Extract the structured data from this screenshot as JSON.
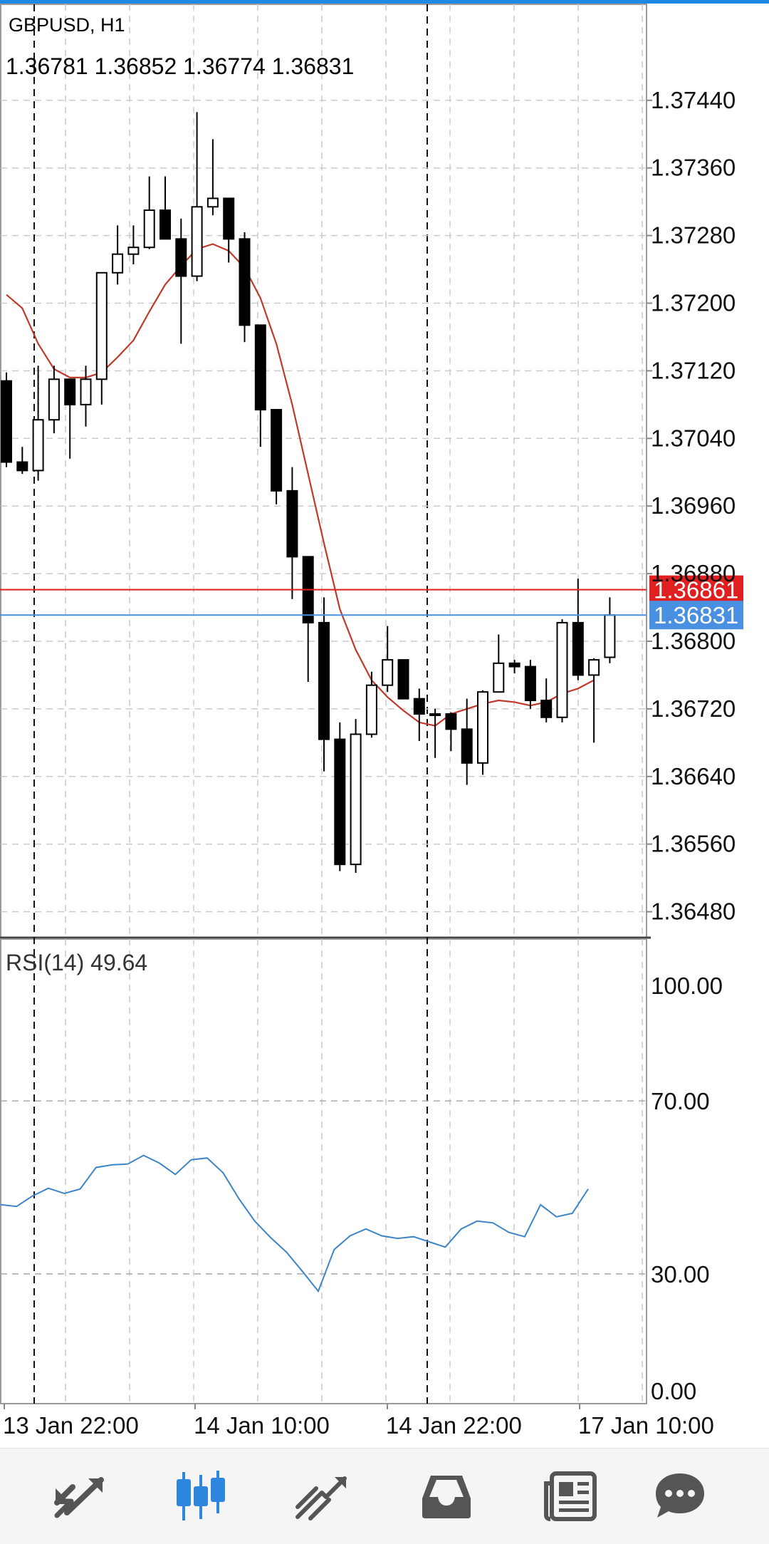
{
  "header": {
    "symbol_label": "GBPUSD, H1",
    "ohlc_label": "1.36781 1.36852 1.36774 1.36831"
  },
  "price_tags": {
    "bid": "1.36831",
    "ask": "1.36861",
    "bid_color": "#4a90e2",
    "ask_color": "#e02020"
  },
  "rsi_panel": {
    "label": "RSI(14) 49.64",
    "levels": [
      "100.00",
      "70.00",
      "30.00",
      "0.00"
    ]
  },
  "colors": {
    "ma_line": "#c0392b",
    "rsi_line": "#3d85c6",
    "grid": "#cccccc",
    "candle": "#000000",
    "nav_icon_active": "#2e86de",
    "nav_icon": "#555555"
  },
  "nav": {
    "items": [
      {
        "icon": "quotes-arrows-icon",
        "active": false
      },
      {
        "icon": "chart-candles-icon",
        "active": true
      },
      {
        "icon": "trade-lines-icon",
        "active": false
      },
      {
        "icon": "inbox-tray-icon",
        "active": false
      },
      {
        "icon": "news-icon",
        "active": false
      },
      {
        "icon": "chat-bubble-icon",
        "active": false
      }
    ]
  },
  "chart_data": [
    {
      "type": "candlestick",
      "title": "GBPUSD, H1",
      "ylim": [
        1.364,
        1.375
      ],
      "y_ticks": [
        "1.37440",
        "1.37360",
        "1.37280",
        "1.37200",
        "1.37120",
        "1.37040",
        "1.36960",
        "1.36880",
        "1.36800",
        "1.36720",
        "1.36640",
        "1.36560",
        "1.36480"
      ],
      "x_ticks": [
        "13 Jan 22:00",
        "14 Jan 10:00",
        "14 Jan 22:00",
        "17 Jan 10:00"
      ],
      "grid": true,
      "series": [
        {
          "candles": [
            [
              1.37108,
              1.37118,
              1.37006,
              1.37012
            ],
            [
              1.37012,
              1.3703,
              1.36998,
              1.37002
            ],
            [
              1.37002,
              1.37126,
              1.3699,
              1.37062
            ],
            [
              1.37062,
              1.37126,
              1.37046,
              1.3711
            ],
            [
              1.3711,
              1.3711,
              1.37016,
              1.3708
            ],
            [
              1.3708,
              1.37126,
              1.37054,
              1.3711
            ],
            [
              1.3711,
              1.37236,
              1.3708,
              1.37236
            ],
            [
              1.37236,
              1.37292,
              1.37222,
              1.37258
            ],
            [
              1.37258,
              1.37292,
              1.37246,
              1.37266
            ],
            [
              1.37266,
              1.3735,
              1.37264,
              1.3731
            ],
            [
              1.3731,
              1.3735,
              1.37276,
              1.37276
            ],
            [
              1.37276,
              1.373,
              1.37152,
              1.37232
            ],
            [
              1.37232,
              1.37426,
              1.37226,
              1.37314
            ],
            [
              1.37314,
              1.37394,
              1.37304,
              1.37324
            ],
            [
              1.37324,
              1.37324,
              1.37248,
              1.37276
            ],
            [
              1.37276,
              1.37284,
              1.37154,
              1.37174
            ],
            [
              1.37174,
              1.37174,
              1.3703,
              1.37074
            ],
            [
              1.37074,
              1.37074,
              1.36962,
              1.36978
            ],
            [
              1.36978,
              1.37006,
              1.3685,
              1.369
            ],
            [
              1.369,
              1.369,
              1.36752,
              1.36822
            ],
            [
              1.36822,
              1.36852,
              1.36646,
              1.36684
            ],
            [
              1.36684,
              1.36704,
              1.36528,
              1.36536
            ],
            [
              1.36536,
              1.36708,
              1.36526,
              1.3669
            ],
            [
              1.3669,
              1.36764,
              1.36686,
              1.36748
            ],
            [
              1.36748,
              1.36818,
              1.3674,
              1.36778
            ],
            [
              1.36778,
              1.36778,
              1.36732,
              1.36732
            ],
            [
              1.36732,
              1.36744,
              1.36682,
              1.36714
            ],
            [
              1.36714,
              1.3672,
              1.36662,
              1.36714
            ],
            [
              1.36714,
              1.36716,
              1.3667,
              1.36696
            ],
            [
              1.36696,
              1.36732,
              1.3663,
              1.36656
            ],
            [
              1.36656,
              1.36742,
              1.36642,
              1.3674
            ],
            [
              1.3674,
              1.36808,
              1.3674,
              1.36774
            ],
            [
              1.36774,
              1.36778,
              1.36762,
              1.3677
            ],
            [
              1.3677,
              1.36778,
              1.3672,
              1.3673
            ],
            [
              1.3673,
              1.36756,
              1.36704,
              1.3671
            ],
            [
              1.3671,
              1.36826,
              1.36704,
              1.36822
            ],
            [
              1.36822,
              1.36874,
              1.36754,
              1.3676
            ],
            [
              1.3676,
              1.3678,
              1.3668,
              1.36778
            ],
            [
              1.36781,
              1.36852,
              1.36774,
              1.36831
            ]
          ],
          "ma": [
            1.3721,
            1.37194,
            1.37152,
            1.37122,
            1.37112,
            1.37112,
            1.37118,
            1.37136,
            1.37156,
            1.3719,
            1.37222,
            1.37244,
            1.37264,
            1.3727,
            1.37262,
            1.37242,
            1.37206,
            1.37152,
            1.3708,
            1.36998,
            1.36916,
            1.36838,
            1.3679,
            1.36754,
            1.36734,
            1.36718,
            1.36704,
            1.367,
            1.36714,
            1.3672,
            1.36726,
            1.3673,
            1.36728,
            1.36724,
            1.36728,
            1.36738,
            1.36744,
            1.36754
          ]
        }
      ],
      "bid": 1.36831,
      "ask": 1.36861
    },
    {
      "type": "line",
      "title": "RSI(14) 49.64",
      "ylim": [
        0,
        100
      ],
      "y_ticks": [
        "100.00",
        "70.00",
        "30.00",
        "0.00"
      ],
      "series": [
        {
          "values": [
            46.0,
            45.6,
            48.0,
            49.8,
            48.6,
            49.6,
            54.6,
            55.2,
            55.4,
            57.4,
            55.6,
            53.0,
            56.4,
            56.8,
            53.4,
            47.4,
            42.2,
            38.4,
            35.0,
            30.6,
            26.0,
            35.6,
            38.8,
            40.4,
            38.8,
            38.2,
            38.6,
            37.4,
            36.2,
            40.4,
            42.2,
            41.8,
            39.6,
            38.6,
            46.0,
            43.2,
            44.0,
            49.64
          ]
        }
      ]
    }
  ]
}
